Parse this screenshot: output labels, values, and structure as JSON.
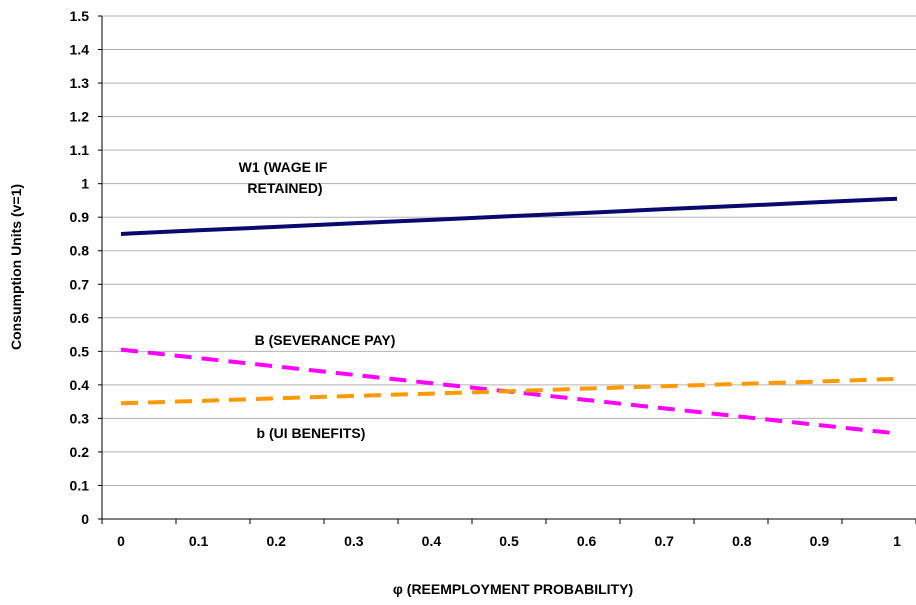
{
  "chart_data": {
    "type": "line",
    "xlabel": "φ (REEMPLOYMENT PROBABILITY)",
    "ylabel": "Consumption Units (v=1)",
    "x": [
      0,
      0.1,
      0.2,
      0.3,
      0.4,
      0.5,
      0.6,
      0.7,
      0.8,
      0.9,
      1
    ],
    "x_tick_labels": [
      "0",
      "0.1",
      "0.2",
      "0.3",
      "0.4",
      "0.5",
      "0.6",
      "0.7",
      "0.8",
      "0.9",
      "1"
    ],
    "y_tick_labels": [
      "0",
      "0.1",
      "0.2",
      "0.3",
      "0.4",
      "0.5",
      "0.6",
      "0.7",
      "0.8",
      "0.9",
      "1",
      "1.1",
      "1.2",
      "1.3",
      "1.4",
      "1.5"
    ],
    "xlim": [
      0,
      1
    ],
    "ylim": [
      0,
      1.5
    ],
    "grid": "horizontal",
    "series": [
      {
        "key": "w1",
        "values": [
          0.85,
          0.861,
          0.871,
          0.882,
          0.892,
          0.903,
          0.913,
          0.924,
          0.934,
          0.945,
          0.955
        ],
        "color": "#0a0a6e",
        "style": "solid"
      },
      {
        "key": "B",
        "values": [
          0.505,
          0.48,
          0.455,
          0.43,
          0.405,
          0.38,
          0.355,
          0.33,
          0.305,
          0.28,
          0.255
        ],
        "color": "#ff00ff",
        "style": "dashed"
      },
      {
        "key": "b",
        "values": [
          0.345,
          0.352,
          0.36,
          0.367,
          0.374,
          0.381,
          0.389,
          0.396,
          0.403,
          0.41,
          0.418
        ],
        "color": "#ff9900",
        "style": "dashed"
      }
    ],
    "annotations": {
      "w1_line1": "W1 (WAGE IF",
      "w1_line2": "RETAINED)",
      "B": "B (SEVERANCE PAY)",
      "b": "b (UI BENEFITS)"
    }
  }
}
